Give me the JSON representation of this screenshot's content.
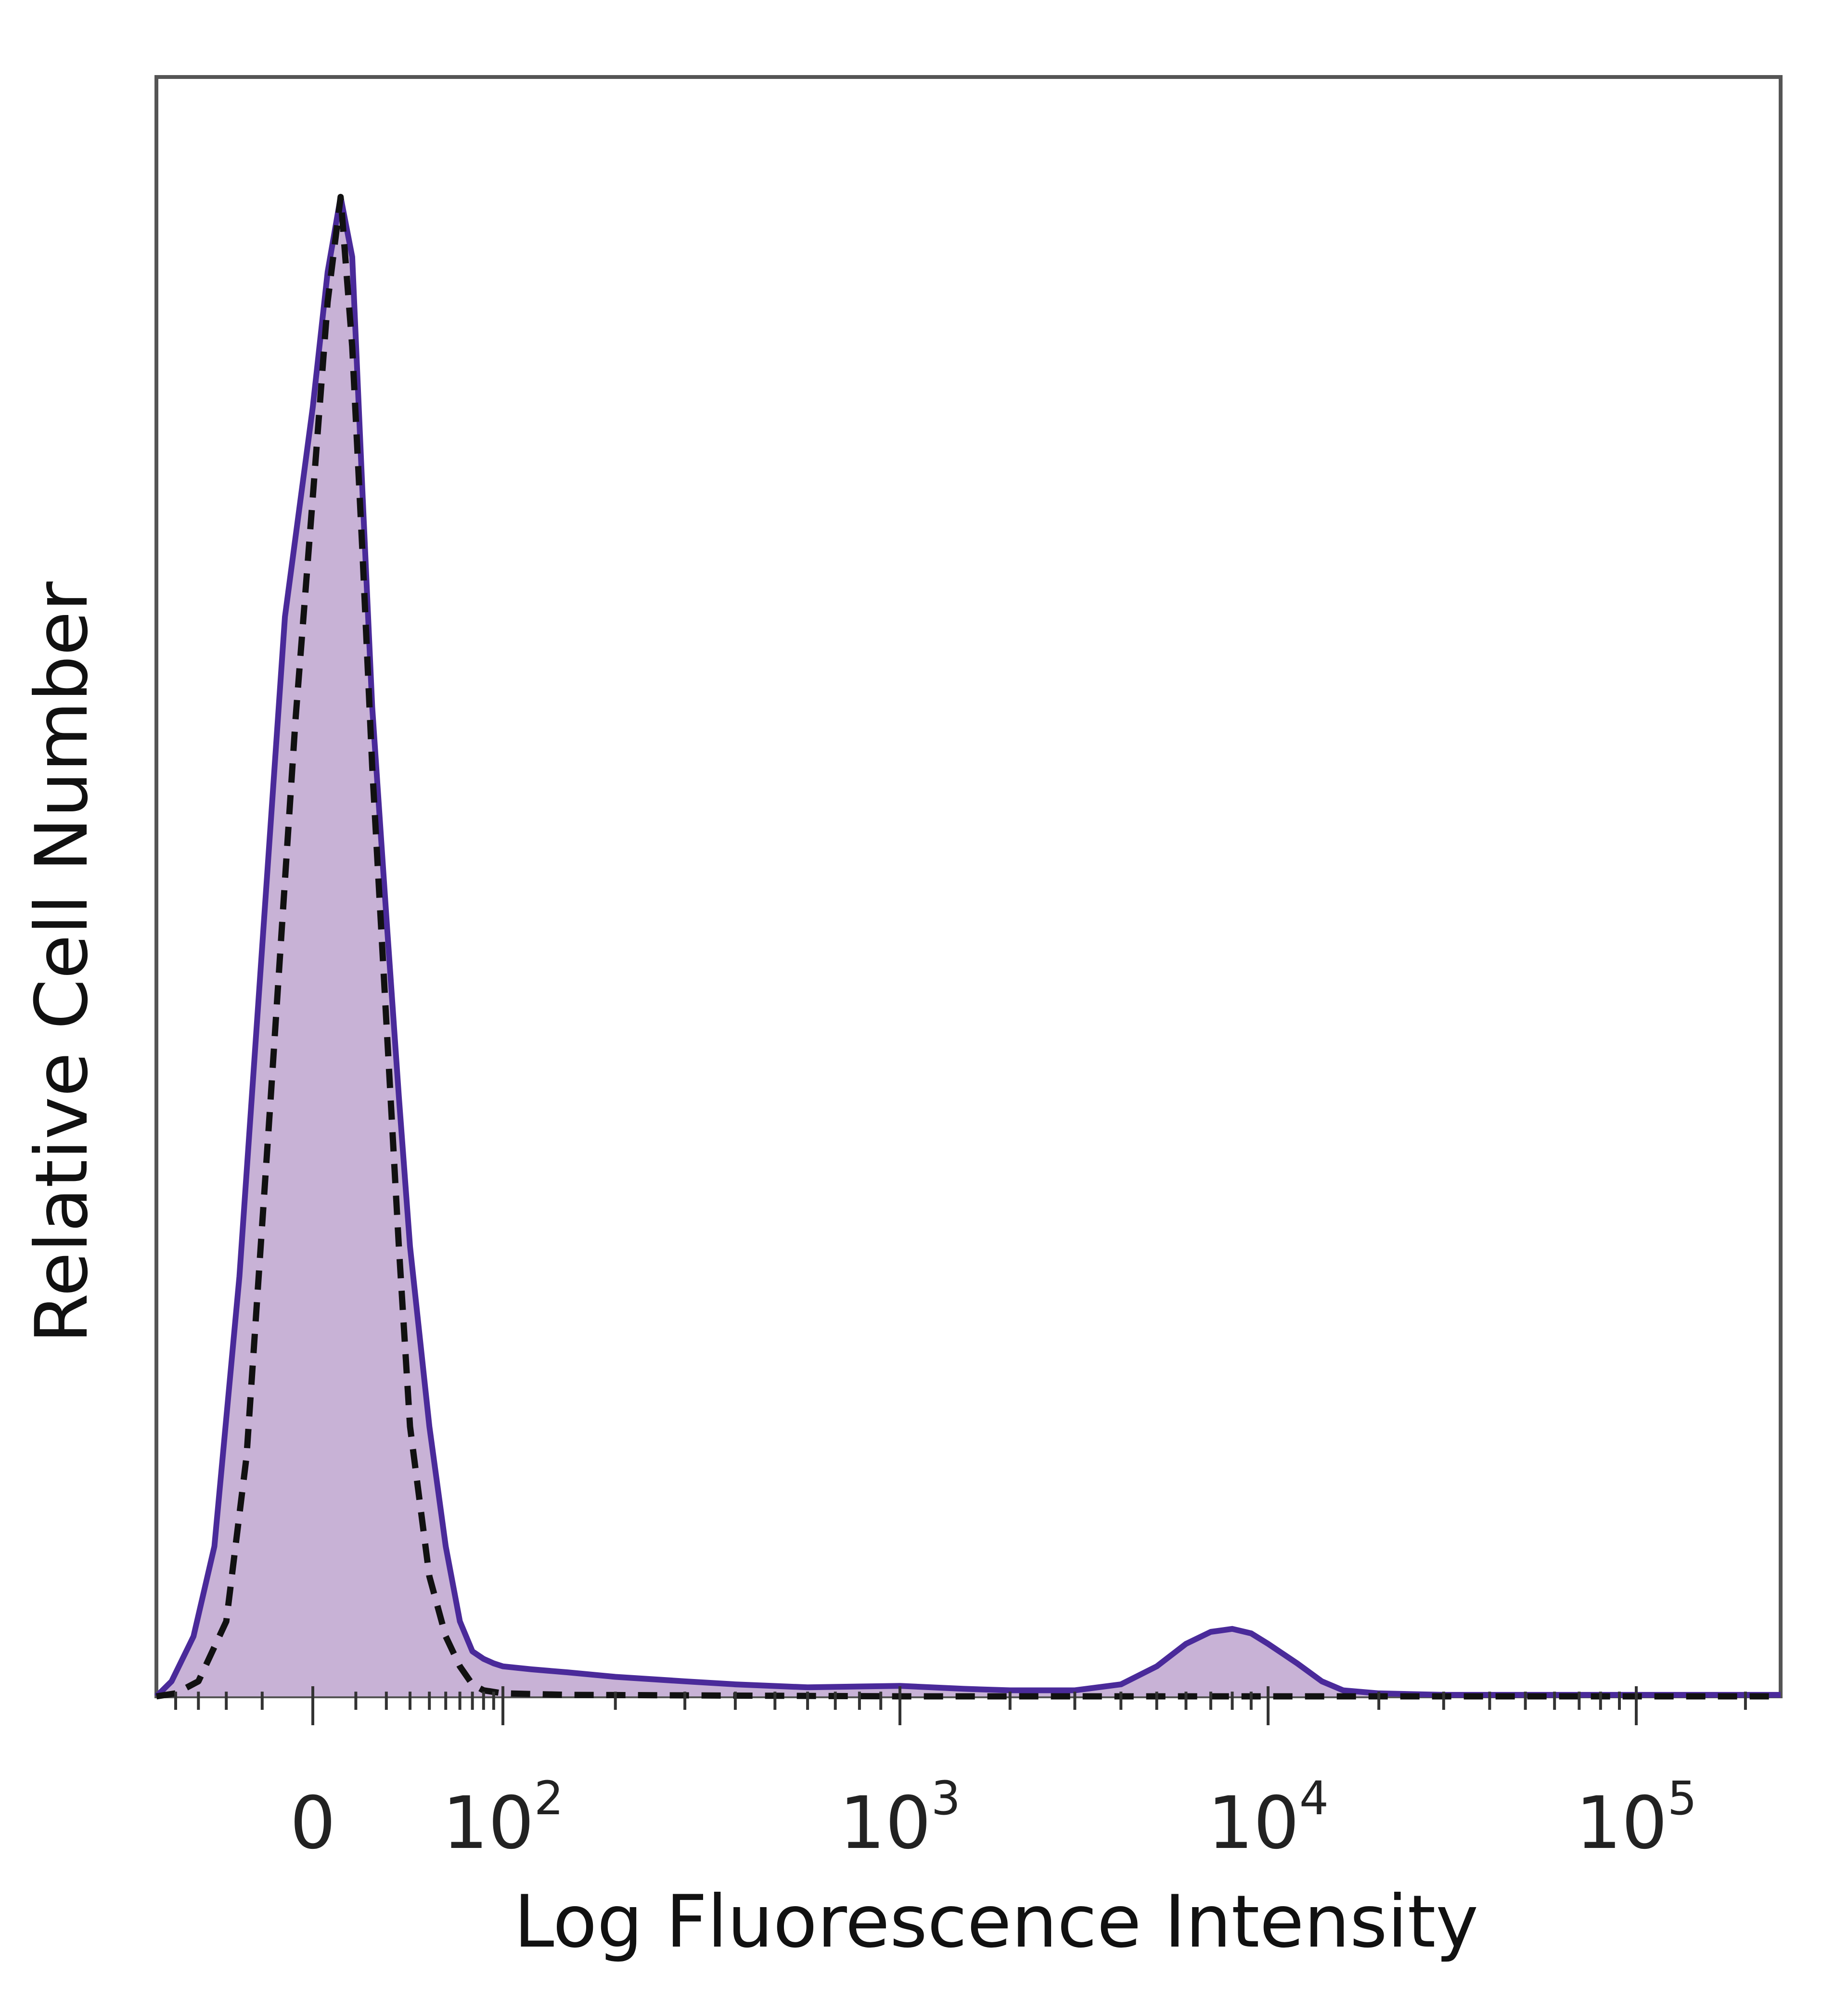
{
  "chart_data": {
    "type": "area",
    "title": "",
    "xlabel": "Log Fluorescence Intensity",
    "ylabel": "Relative Cell Number",
    "x_scale": "biexponential",
    "xlim": [
      -50,
      250000
    ],
    "ylim": [
      0,
      1.08
    ],
    "grid": false,
    "legend": "none",
    "x_ticks": [
      {
        "value": 0,
        "base": "0",
        "exp": ""
      },
      {
        "value": 100,
        "base": "10",
        "exp": "2"
      },
      {
        "value": 1000,
        "base": "10",
        "exp": "3"
      },
      {
        "value": 10000,
        "base": "10",
        "exp": "4"
      },
      {
        "value": 100000,
        "base": "10",
        "exp": "5"
      }
    ],
    "colors": {
      "stained_line": "#4a2a9a",
      "stained_fill": "#c8b2d6",
      "control_line": "#111111",
      "frame": "#555555"
    },
    "series": [
      {
        "style": "solid-filled",
        "x": [
          -50,
          -42,
          -32,
          -24,
          -16,
          -10,
          -5,
          0,
          3,
          6,
          9,
          12,
          15,
          20,
          25,
          30,
          40,
          50,
          60,
          70,
          80,
          90,
          100,
          120,
          150,
          200,
          300,
          400,
          600,
          1000,
          1500,
          2000,
          3000,
          4000,
          5000,
          6000,
          7000,
          8000,
          9000,
          10000,
          12000,
          14000,
          16000,
          20000,
          30000,
          50000,
          100000,
          250000
        ],
        "y": [
          0,
          0.01,
          0.04,
          0.1,
          0.28,
          0.5,
          0.72,
          0.86,
          0.95,
          1.0,
          0.96,
          0.8,
          0.66,
          0.52,
          0.4,
          0.3,
          0.18,
          0.1,
          0.05,
          0.03,
          0.025,
          0.022,
          0.02,
          0.018,
          0.016,
          0.013,
          0.01,
          0.008,
          0.006,
          0.007,
          0.005,
          0.004,
          0.004,
          0.008,
          0.02,
          0.035,
          0.043,
          0.045,
          0.042,
          0.035,
          0.022,
          0.01,
          0.004,
          0.002,
          0.001,
          0.001,
          0.001,
          0.001
        ]
      },
      {
        "style": "dashed",
        "x": [
          -50,
          -40,
          -30,
          -20,
          -14,
          -8,
          -3,
          0,
          3,
          6,
          9,
          12,
          15,
          20,
          25,
          30,
          40,
          50,
          60,
          70,
          80,
          100,
          150,
          1000,
          10000,
          250000
        ],
        "y": [
          0,
          0.002,
          0.01,
          0.05,
          0.16,
          0.4,
          0.65,
          0.8,
          0.93,
          1.0,
          0.9,
          0.76,
          0.62,
          0.45,
          0.3,
          0.18,
          0.08,
          0.04,
          0.02,
          0.008,
          0.004,
          0.002,
          0.001,
          0,
          0,
          0
        ]
      }
    ]
  }
}
